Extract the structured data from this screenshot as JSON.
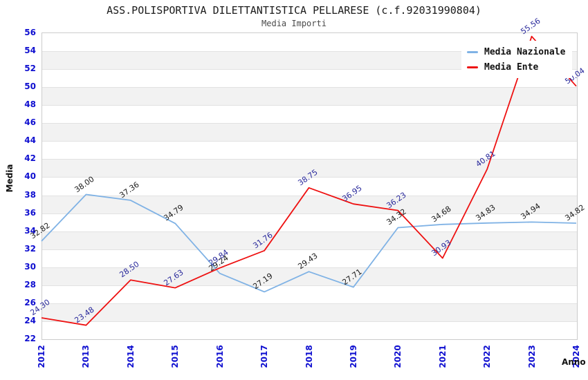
{
  "chart_data": {
    "type": "line",
    "title": "ASS.POLISPORTIVA DILETTANTISTICA PELLARESE (c.f.92031990804)",
    "subtitle": "Media Importi",
    "xlabel": "Anno",
    "ylabel": "Media",
    "ylim": [
      22,
      56
    ],
    "ytick_step": 2,
    "grid": true,
    "legend_position": "top-right-inside",
    "band_color": "#f2f2f2",
    "axis_tick_color": "#0f0fd0",
    "categories": [
      "2012",
      "2013",
      "2014",
      "2015",
      "2016",
      "2017",
      "2018",
      "2019",
      "2020",
      "2021",
      "2022",
      "2023",
      "2024"
    ],
    "series": [
      {
        "name": "Media Nazionale",
        "color": "#7fb2e5",
        "label_color": "#1a1a1a",
        "values": [
          32.82,
          38.0,
          37.36,
          34.79,
          29.24,
          27.19,
          29.43,
          27.71,
          34.32,
          34.68,
          34.83,
          34.94,
          34.82
        ]
      },
      {
        "name": "Media Ente",
        "color": "#ee1111",
        "label_color": "#28289b",
        "values": [
          24.3,
          23.48,
          28.5,
          27.63,
          29.84,
          31.76,
          38.75,
          36.95,
          36.23,
          30.93,
          40.81,
          55.56,
          50.04
        ]
      }
    ]
  }
}
